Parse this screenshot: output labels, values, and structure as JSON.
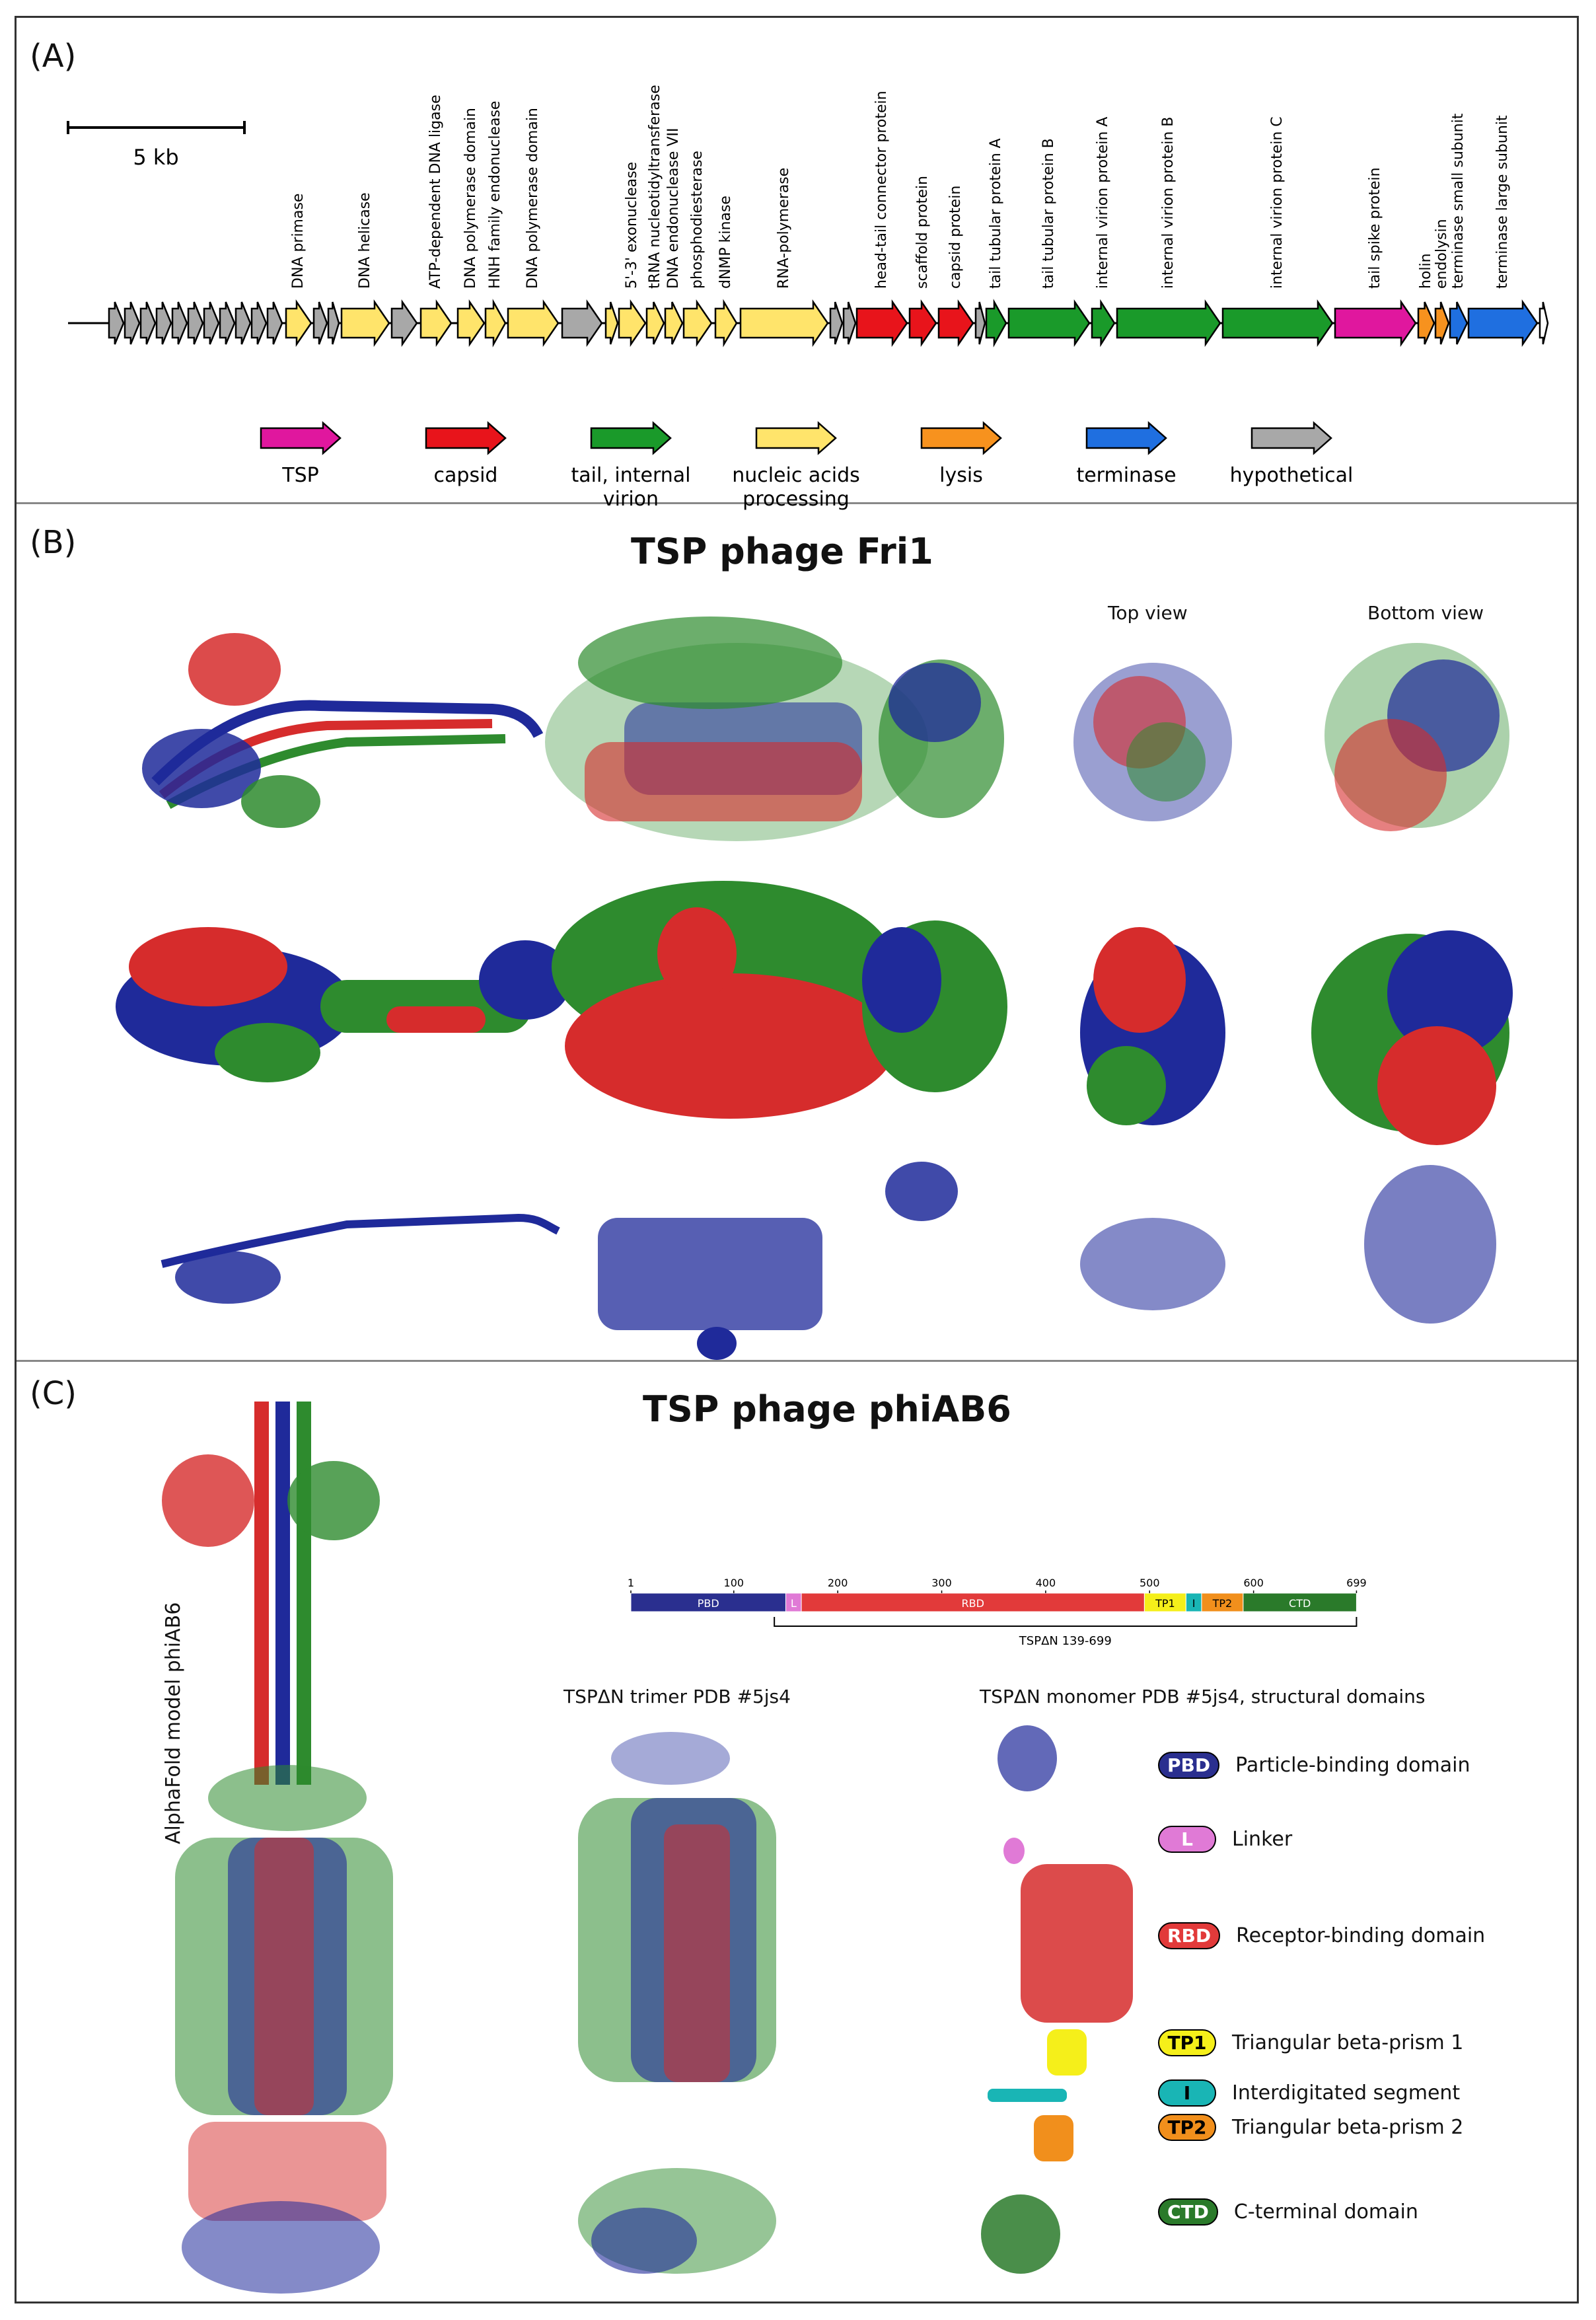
{
  "panelA": {
    "label": "(A)",
    "scalebar": "5 kb",
    "genes": [
      "DNA primase",
      "DNA helicase",
      "ATP-dependent DNA ligase",
      "DNA polymerase domain",
      "HNH family endonuclease",
      "DNA polymerase domain",
      "5'-3' exonuclease",
      "tRNA nucleotidyltransferase",
      "DNA endonuclease VII",
      "phosphodiesterase",
      "dNMP kinase",
      "RNA-polymerase",
      "head-tail connector protein",
      "scaffold protein",
      "capsid protein",
      "tail tubular protein A",
      "tail tubular protein B",
      "internal virion protein A",
      "internal virion protein B",
      "internal virion protein C",
      "tail spike protein",
      "holin",
      "endolysin",
      "terminase small subunit",
      "terminase large subunit"
    ],
    "legend": [
      {
        "label": "TSP",
        "color": "#e0179e"
      },
      {
        "label": "capsid",
        "color": "#e8141b"
      },
      {
        "label": "tail, internal virion",
        "color": "#1a9a2a"
      },
      {
        "label": "nucleic acids processing",
        "color": "#ffe46b"
      },
      {
        "label": "lysis",
        "color": "#f7921e"
      },
      {
        "label": "terminase",
        "color": "#1f6fe0"
      },
      {
        "label": "hypothetical",
        "color": "#a8a8a8"
      }
    ]
  },
  "panelB": {
    "label": "(B)",
    "title": "TSP phage Fri1",
    "top_view": "Top view",
    "bottom_view": "Bottom view"
  },
  "panelC": {
    "label": "(C)",
    "title": "TSP phage phiAB6",
    "alphafold_label": "AlphaFold model phiAB6",
    "ticks": [
      "1",
      "100",
      "200",
      "300",
      "400",
      "500",
      "600",
      "699"
    ],
    "domain_bar": [
      {
        "name": "PBD",
        "color": "#2a2f8f"
      },
      {
        "name": "L",
        "color": "#e07ad6"
      },
      {
        "name": "RBD",
        "color": "#e23a3a"
      },
      {
        "name": "TP1",
        "color": "#f5ef1a"
      },
      {
        "name": "I",
        "color": "#19b5b5"
      },
      {
        "name": "TP2",
        "color": "#f18f1c"
      },
      {
        "name": "CTD",
        "color": "#2a7a2a"
      }
    ],
    "construct": "TSPΔN 139-699",
    "trimer_label": "TSPΔN trimer PDB #5js4",
    "monomer_label": "TSPΔN monomer PDB #5js4, structural domains",
    "domains": [
      {
        "abbr": "PBD",
        "name": "Particle-binding domain",
        "color": "#2a2f8f"
      },
      {
        "abbr": "L",
        "name": "Linker",
        "color": "#e07ad6"
      },
      {
        "abbr": "RBD",
        "name": "Receptor-binding domain",
        "color": "#e23a3a"
      },
      {
        "abbr": "TP1",
        "name": "Triangular beta-prism 1",
        "color": "#f5ef1a"
      },
      {
        "abbr": "I",
        "name": "Interdigitated segment",
        "color": "#19b5b5"
      },
      {
        "abbr": "TP2",
        "name": "Triangular beta-prism 2",
        "color": "#f18f1c"
      },
      {
        "abbr": "CTD",
        "name": "C-terminal domain",
        "color": "#2a7a2a"
      }
    ]
  }
}
